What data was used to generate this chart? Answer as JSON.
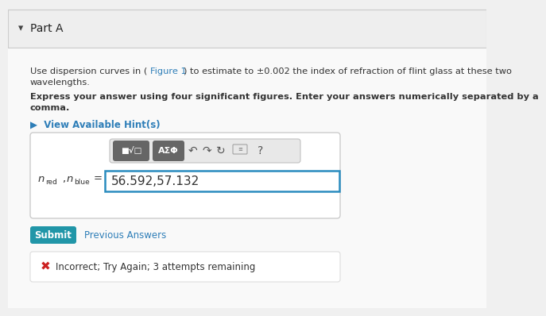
{
  "bg_color": "#f0f0f0",
  "header_bg": "#eeeeee",
  "header_border_color": "#cccccc",
  "body_bg": "#f9f9f9",
  "part_label": "Part A",
  "body_text_line1a": "Use dispersion curves in (",
  "body_text_line1b": "Figure 1",
  "body_text_line1c": ") to estimate to ±0.002 the index of refraction of flint glass at these two",
  "body_text_line2": "wavelengths.",
  "body_bold_line1": "Express your answer using four significant figures. Enter your answers numerically separated by a",
  "body_bold_line2": "comma.",
  "hint_text": "▶  View Available Hint(s)",
  "link_color": "#2e7eb8",
  "panel_bg": "#ffffff",
  "panel_border": "#cccccc",
  "toolbar_bg": "#e8e8e8",
  "toolbar_border": "#bbbbbb",
  "btn_bg": "#666666",
  "btn_fg": "#ffffff",
  "icon_color": "#555555",
  "input_border_color": "#2a8cbf",
  "input_value": "56.592,57.132",
  "label_italic": "n",
  "label_sub_red": "red",
  "label_sub_blue": "blue",
  "submit_bg": "#2196a8",
  "submit_fg": "#ffffff",
  "submit_text": "Submit",
  "prev_text": "Previous Answers",
  "error_panel_bg": "#ffffff",
  "error_panel_border": "#dddddd",
  "error_x_color": "#cc2222",
  "error_text": "Incorrect; Try Again; 3 attempts remaining",
  "text_color": "#333333"
}
